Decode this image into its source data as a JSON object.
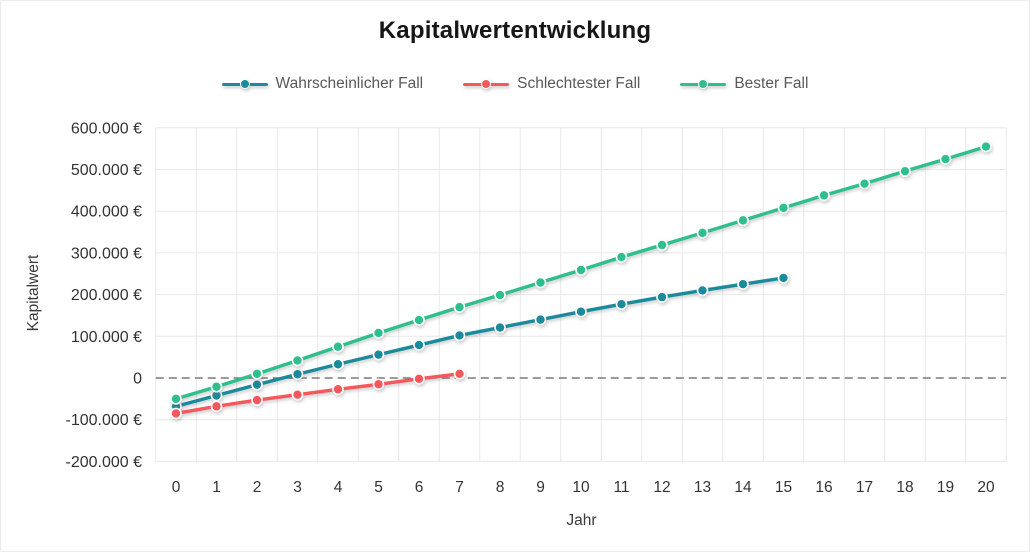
{
  "chart": {
    "title": "Kapitalwertentwicklung",
    "x_axis_title": "Jahr",
    "y_axis_title": "Kapitalwert"
  },
  "chart_data": {
    "type": "line",
    "title": "Kapitalwertentwicklung",
    "xlabel": "Jahr",
    "ylabel": "Kapitalwert",
    "x_tick_labels": [
      "0",
      "1",
      "2",
      "3",
      "4",
      "5",
      "6",
      "7",
      "8",
      "9",
      "10",
      "11",
      "12",
      "13",
      "14",
      "15",
      "16",
      "17",
      "18",
      "19",
      "20"
    ],
    "y_ticks": [
      600000,
      500000,
      400000,
      300000,
      200000,
      100000,
      0,
      -100000,
      -200000
    ],
    "y_tick_labels": [
      "600.000 €",
      "500.000 €",
      "400.000 €",
      "300.000 €",
      "200.000 €",
      "100.000 €",
      "0",
      "-100.000 €",
      "-200.000 €"
    ],
    "ylim": [
      -200000,
      600000
    ],
    "xlim": [
      0,
      20
    ],
    "grid": true,
    "legend_position": "top",
    "zero_line": {
      "style": "dashed",
      "color": "#7a7a7a"
    },
    "gridline_color": "#e8e8e8",
    "series": [
      {
        "name": "Wahrscheinlicher Fall",
        "color": "#1B8A9B",
        "x": [
          0,
          1,
          2,
          3,
          4,
          5,
          6,
          7,
          8,
          9,
          10,
          11,
          12,
          13,
          14,
          15
        ],
        "values": [
          -68000,
          -42000,
          -16000,
          9000,
          33000,
          56000,
          79000,
          102000,
          121000,
          140000,
          159000,
          177000,
          194000,
          210000,
          225000,
          240000
        ]
      },
      {
        "name": "Schlechtester Fall",
        "color": "#F4585C",
        "x": [
          0,
          1,
          2,
          3,
          4,
          5,
          6,
          7
        ],
        "values": [
          -85000,
          -68000,
          -53000,
          -40000,
          -27000,
          -15000,
          -2000,
          10000
        ]
      },
      {
        "name": "Bester Fall",
        "color": "#2FBF8C",
        "x": [
          0,
          1,
          2,
          3,
          4,
          5,
          6,
          7,
          8,
          9,
          10,
          11,
          12,
          13,
          14,
          15,
          16,
          17,
          18,
          19,
          20
        ],
        "values": [
          -50000,
          -21000,
          10000,
          42000,
          75000,
          108000,
          139000,
          170000,
          199000,
          229000,
          259000,
          290000,
          319000,
          348000,
          378000,
          408000,
          438000,
          466000,
          496000,
          525000,
          555000
        ]
      }
    ]
  }
}
